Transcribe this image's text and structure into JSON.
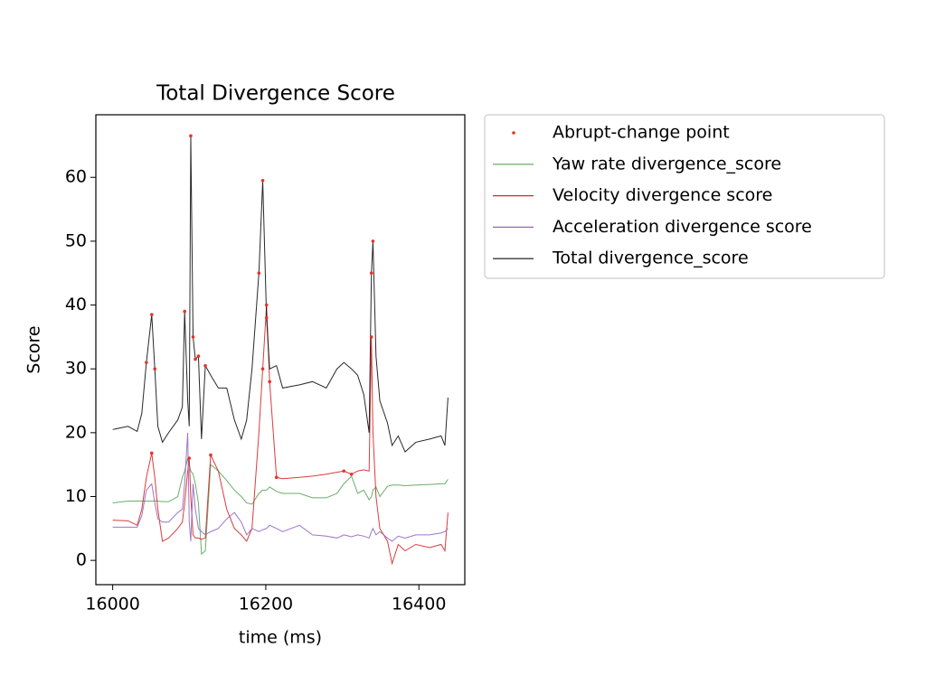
{
  "chart_data": {
    "type": "line",
    "title": "Total Divergence Score",
    "xlabel": "time (ms)",
    "ylabel": "Score",
    "x": [
      16000,
      16020,
      16032,
      16038,
      16044,
      16051,
      16055,
      16059,
      16065,
      16073,
      16085,
      16091,
      16094,
      16098,
      16100,
      16102,
      16105,
      16108,
      16112,
      16116,
      16121,
      16128,
      16138,
      16149,
      16159,
      16168,
      16175,
      16182,
      16191,
      16196,
      16201,
      16205,
      16214,
      16222,
      16244,
      16261,
      16279,
      16293,
      16302,
      16312,
      16320,
      16328,
      16335,
      16338,
      16340,
      16344,
      16349,
      16359,
      16365,
      16373,
      16382,
      16396,
      16414,
      16429,
      16434,
      16438
    ],
    "xlim": [
      15978,
      16460
    ],
    "xticks": [
      16000,
      16200,
      16400
    ],
    "ylim": [
      -3.8,
      69.8
    ],
    "yticks": [
      0,
      10,
      20,
      30,
      40,
      50,
      60
    ],
    "legend": "outside-upper-right",
    "series": [
      {
        "name": "Abrupt-change point",
        "color": "#e8322a",
        "marker": "dot",
        "x": [
          16044,
          16051,
          16055,
          16094,
          16102,
          16105,
          16108,
          16112,
          16121,
          16191,
          16196,
          16201,
          16338,
          16340,
          16051,
          16100,
          16128,
          16196,
          16201,
          16205,
          16214,
          16338,
          16302,
          16312
        ],
        "values": [
          31,
          38.5,
          30,
          39,
          66.5,
          35,
          31.5,
          32,
          30.5,
          45,
          59.5,
          38,
          45,
          50,
          16.8,
          16,
          16.5,
          30,
          40,
          28,
          13,
          35,
          14,
          13.5
        ]
      },
      {
        "name": "Yaw rate divergence_score",
        "color": "#5aa55a",
        "values": [
          9,
          9.3,
          9.3,
          9.3,
          9.3,
          9.3,
          9.3,
          9.3,
          9.2,
          9.2,
          10,
          13,
          14,
          16,
          15,
          14,
          13.5,
          12,
          9,
          1,
          1.5,
          15,
          14,
          12.5,
          11,
          10,
          9,
          8.8,
          10.5,
          11,
          11,
          11.5,
          10.8,
          10.5,
          10.5,
          9.8,
          9.8,
          10.5,
          12,
          13.2,
          10.5,
          11,
          9.5,
          10,
          11,
          11.5,
          10,
          11.6,
          11.8,
          11.8,
          11.7,
          11.8,
          11.9,
          12,
          12,
          12.7
        ]
      },
      {
        "name": "Velocity divergence score",
        "color": "#d62728",
        "values": [
          6.3,
          6.2,
          5.5,
          8,
          13,
          16.8,
          13,
          8,
          3,
          3.5,
          5,
          6,
          9,
          14,
          16,
          10,
          4,
          3.5,
          3.5,
          3.3,
          3.5,
          16.5,
          14,
          8,
          5,
          4,
          3,
          5,
          20,
          30,
          40,
          28,
          13,
          12.8,
          13,
          13.2,
          13.5,
          13.8,
          14,
          13.5,
          14,
          14.2,
          14,
          35,
          20,
          10,
          5,
          3,
          -0.5,
          2.5,
          1.5,
          2.5,
          2,
          2.5,
          1.5,
          7.5
        ]
      },
      {
        "name": "Acceleration divergence score",
        "color": "#9467bd",
        "values": [
          5.2,
          5.2,
          5.2,
          7,
          11,
          12,
          9,
          6.5,
          6,
          6,
          7.5,
          8,
          12,
          20,
          6,
          3,
          12,
          8,
          5,
          4.5,
          4,
          4.5,
          5,
          6.5,
          7.5,
          6,
          4,
          5,
          4.5,
          4.8,
          5,
          5.5,
          5,
          4.5,
          5.5,
          4,
          3.8,
          3.5,
          4,
          3.7,
          4,
          3.8,
          3.5,
          4.5,
          5,
          4,
          4.5,
          3.5,
          3,
          3.8,
          3.5,
          4,
          4,
          4.3,
          4.5,
          5
        ]
      },
      {
        "name": "Total divergence_score",
        "color": "#111111",
        "values": [
          20.5,
          21,
          20.2,
          23,
          31,
          38.5,
          30,
          21,
          18.5,
          20,
          22,
          24,
          39,
          25,
          21,
          66.5,
          35,
          31.5,
          32,
          19,
          30.5,
          29,
          27,
          27,
          22,
          19,
          22,
          30,
          45,
          59.5,
          38,
          30,
          30.5,
          27,
          27.5,
          28,
          27,
          30,
          31,
          30,
          29,
          26,
          20,
          45,
          50,
          32,
          25,
          21.5,
          18,
          19.5,
          17,
          18.5,
          19,
          19.5,
          18,
          25.5
        ]
      }
    ]
  }
}
